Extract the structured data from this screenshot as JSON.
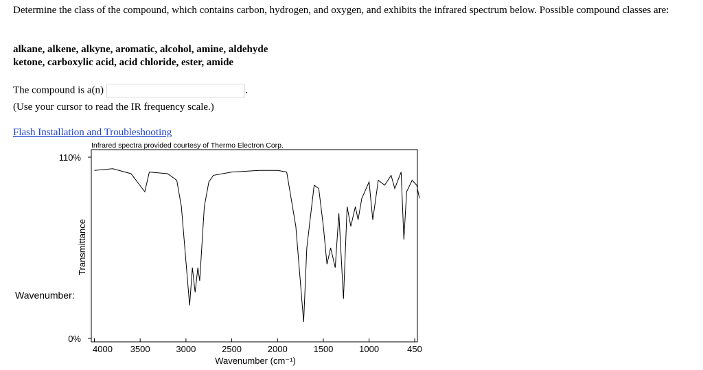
{
  "question": {
    "prompt": "Determine the class of the compound, which contains carbon, hydrogen, and oxygen, and exhibits the infrared spectrum below. Possible compound classes are:",
    "classes_line1": "alkane, alkene, alkyne, aromatic, alcohol, amine, aldehyde",
    "classes_line2": "ketone, carboxylic acid, acid chloride, ester, amide",
    "answer_label": "The compound is a(n)",
    "answer_end": ".",
    "hint": "(Use your cursor to read the IR frequency scale.)",
    "link": "Flash Installation and Troubleshooting",
    "side_label": "Wavenumber:"
  },
  "chart_data": {
    "type": "line",
    "credit": "Infrared spectra provided courtesy of Thermo Electron Corp.",
    "x_label": "Wavenumber (cm⁻¹)",
    "y_label": "Transmittance",
    "color": "#000000",
    "xlim": [
      4000,
      450
    ],
    "ylim": [
      0,
      110
    ],
    "xticks": [
      4000,
      3500,
      3000,
      2500,
      2000,
      1500,
      1000,
      450
    ],
    "yticks": [
      {
        "value": 0,
        "label": "0%"
      },
      {
        "value": 110,
        "label": "110%"
      }
    ],
    "x": [
      4000,
      3800,
      3600,
      3450,
      3400,
      3200,
      3100,
      3050,
      2960,
      2930,
      2900,
      2870,
      2850,
      2800,
      2750,
      2700,
      2500,
      2200,
      2000,
      1900,
      1800,
      1715,
      1680,
      1600,
      1550,
      1500,
      1460,
      1420,
      1370,
      1330,
      1280,
      1240,
      1200,
      1150,
      1120,
      1080,
      1000,
      960,
      900,
      830,
      760,
      720,
      650,
      620,
      590,
      530,
      480,
      450
    ],
    "values": [
      102,
      103,
      100,
      89,
      101,
      100,
      96,
      80,
      20,
      43,
      28,
      43,
      35,
      80,
      95,
      99,
      101,
      102,
      102,
      101,
      68,
      10,
      55,
      93,
      91,
      68,
      45,
      55,
      43,
      76,
      24,
      80,
      68,
      80,
      72,
      85,
      95,
      72,
      96,
      93,
      99,
      91,
      101,
      60,
      89,
      96,
      93,
      85
    ]
  }
}
